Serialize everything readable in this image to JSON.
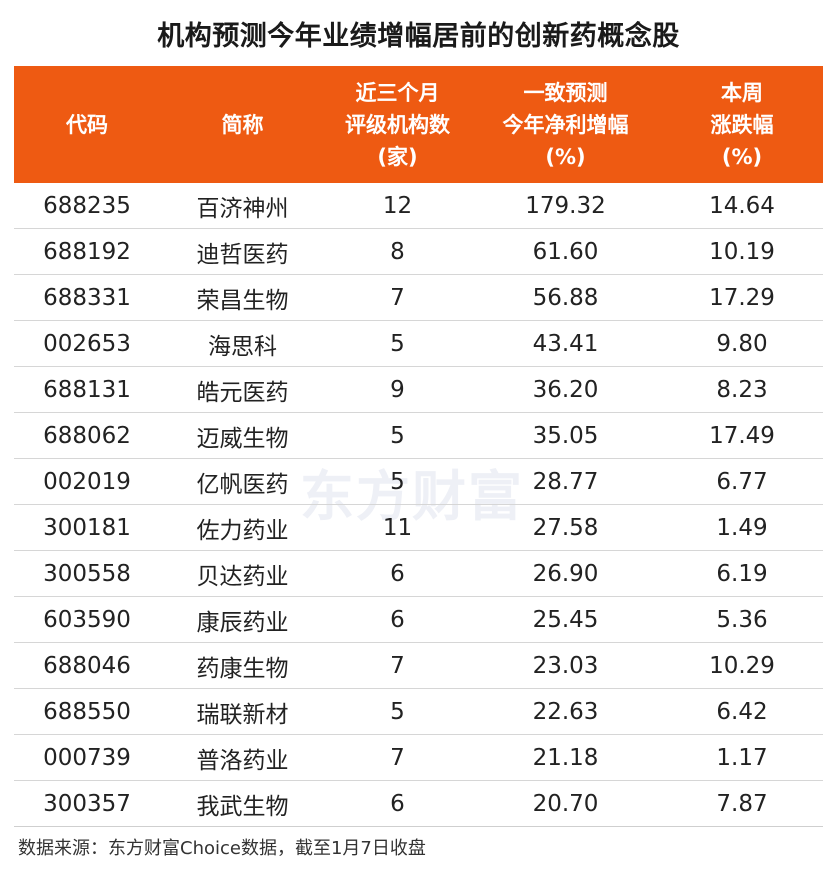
{
  "title": "机构预测今年业绩增幅居前的创新药概念股",
  "header": {
    "code": [
      "代码"
    ],
    "name": [
      "简称"
    ],
    "rating_count": [
      "近三个月",
      "评级机构数",
      "(家)"
    ],
    "profit_growth": [
      "一致预测",
      "今年净利增幅",
      "(%)"
    ],
    "weekly_change": [
      "本周",
      "涨跌幅",
      "(%)"
    ]
  },
  "rows": [
    {
      "code": "688235",
      "name": "百济神州",
      "rating_count": "12",
      "profit_growth": "179.32",
      "weekly_change": "14.64"
    },
    {
      "code": "688192",
      "name": "迪哲医药",
      "rating_count": "8",
      "profit_growth": "61.60",
      "weekly_change": "10.19"
    },
    {
      "code": "688331",
      "name": "荣昌生物",
      "rating_count": "7",
      "profit_growth": "56.88",
      "weekly_change": "17.29"
    },
    {
      "code": "002653",
      "name": "海思科",
      "rating_count": "5",
      "profit_growth": "43.41",
      "weekly_change": "9.80"
    },
    {
      "code": "688131",
      "name": "皓元医药",
      "rating_count": "9",
      "profit_growth": "36.20",
      "weekly_change": "8.23"
    },
    {
      "code": "688062",
      "name": "迈威生物",
      "rating_count": "5",
      "profit_growth": "35.05",
      "weekly_change": "17.49"
    },
    {
      "code": "002019",
      "name": "亿帆医药",
      "rating_count": "5",
      "profit_growth": "28.77",
      "weekly_change": "6.77"
    },
    {
      "code": "300181",
      "name": "佐力药业",
      "rating_count": "11",
      "profit_growth": "27.58",
      "weekly_change": "1.49"
    },
    {
      "code": "300558",
      "name": "贝达药业",
      "rating_count": "6",
      "profit_growth": "26.90",
      "weekly_change": "6.19"
    },
    {
      "code": "603590",
      "name": "康辰药业",
      "rating_count": "6",
      "profit_growth": "25.45",
      "weekly_change": "5.36"
    },
    {
      "code": "688046",
      "name": "药康生物",
      "rating_count": "7",
      "profit_growth": "23.03",
      "weekly_change": "10.29"
    },
    {
      "code": "688550",
      "name": "瑞联新材",
      "rating_count": "5",
      "profit_growth": "22.63",
      "weekly_change": "6.42"
    },
    {
      "code": "000739",
      "name": "普洛药业",
      "rating_count": "7",
      "profit_growth": "21.18",
      "weekly_change": "1.17"
    },
    {
      "code": "300357",
      "name": "我武生物",
      "rating_count": "6",
      "profit_growth": "20.70",
      "weekly_change": "7.87"
    }
  ],
  "watermark": "东方财富",
  "source": "数据来源：东方财富Choice数据，截至1月7日收盘",
  "colors": {
    "header_bg": "#ee5a12",
    "header_text": "#ffffff",
    "row_divider": "#d6d6d6"
  }
}
